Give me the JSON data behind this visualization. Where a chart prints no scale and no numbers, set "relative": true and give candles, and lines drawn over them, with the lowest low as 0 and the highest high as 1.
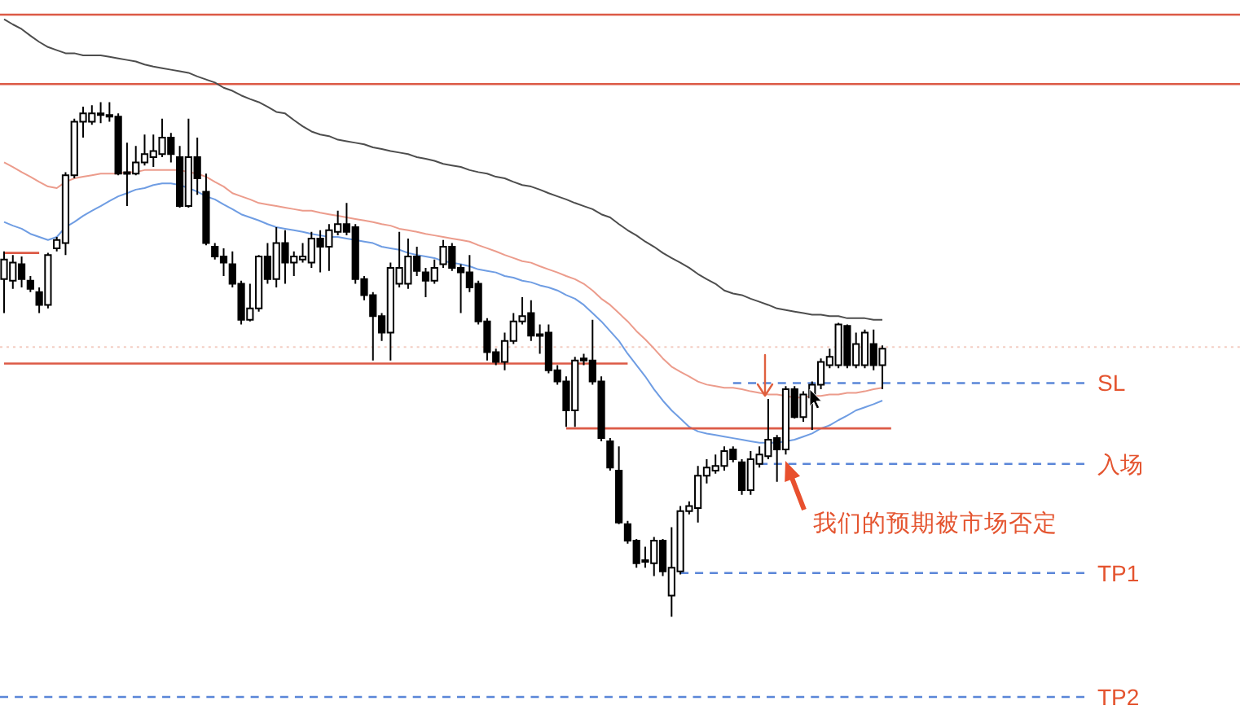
{
  "chart_data": {
    "type": "candlestick",
    "relative": true,
    "color": "#000000",
    "categories": [
      null,
      null,
      null,
      null,
      null,
      null,
      null,
      null,
      null,
      null,
      null,
      null,
      null,
      null,
      null,
      null,
      null,
      null,
      null,
      null,
      null,
      null,
      null,
      null,
      null,
      null,
      null,
      null,
      null,
      null,
      null,
      null,
      null,
      null,
      null,
      null,
      null,
      null,
      null,
      null,
      null,
      null,
      null,
      null,
      null,
      null,
      null,
      null,
      null,
      null,
      null,
      null,
      null,
      null,
      null,
      null,
      null,
      null,
      null,
      null,
      null,
      null,
      null,
      null,
      null,
      null,
      null,
      null,
      null,
      null,
      null,
      null,
      null,
      null,
      null,
      null,
      null,
      null,
      null,
      null,
      null,
      null,
      null,
      null,
      null,
      null,
      null,
      null,
      null,
      null,
      null,
      null,
      null,
      null,
      null,
      null,
      null,
      null,
      null,
      null,
      null,
      null,
      null,
      null,
      null,
      null,
      null,
      null,
      null,
      null,
      null,
      null,
      null,
      null,
      null,
      null,
      null,
      null,
      null,
      null,
      null,
      null,
      null,
      null
    ],
    "ohlc": [
      [
        0.656,
        0.71,
        0.59,
        0.694
      ],
      [
        0.653,
        0.703,
        0.637,
        0.688
      ],
      [
        0.685,
        0.7,
        0.64,
        0.656
      ],
      [
        0.653,
        0.662,
        0.631,
        0.637
      ],
      [
        0.631,
        0.64,
        0.59,
        0.606
      ],
      [
        0.606,
        0.707,
        0.599,
        0.703
      ],
      [
        0.716,
        0.738,
        0.71,
        0.732
      ],
      [
        0.726,
        0.864,
        0.703,
        0.858
      ],
      [
        0.858,
        0.968,
        0.852,
        0.962
      ],
      [
        0.962,
        0.991,
        0.931,
        0.978
      ],
      [
        0.962,
        0.994,
        0.956,
        0.978
      ],
      [
        0.978,
        1,
        0.959,
        0.975
      ],
      [
        0.975,
        1,
        0.962,
        0.972
      ],
      [
        0.972,
        0.978,
        0.858,
        0.861
      ],
      [
        0.861,
        0.921,
        0.798,
        0.864
      ],
      [
        0.861,
        0.915,
        0.858,
        0.883
      ],
      [
        0.883,
        0.937,
        0.877,
        0.899
      ],
      [
        0.893,
        0.937,
        0.874,
        0.905
      ],
      [
        0.899,
        0.968,
        0.893,
        0.931
      ],
      [
        0.931,
        0.94,
        0.883,
        0.899
      ],
      [
        0.893,
        0.915,
        0.795,
        0.798
      ],
      [
        0.798,
        0.968,
        0.795,
        0.893
      ],
      [
        0.893,
        0.931,
        0.82,
        0.852
      ],
      [
        0.826,
        0.861,
        0.722,
        0.726
      ],
      [
        0.719,
        0.726,
        0.694,
        0.7
      ],
      [
        0.7,
        0.716,
        0.662,
        0.688
      ],
      [
        0.685,
        0.71,
        0.64,
        0.647
      ],
      [
        0.647,
        0.653,
        0.568,
        0.577
      ],
      [
        0.577,
        0.647,
        0.574,
        0.599
      ],
      [
        0.599,
        0.703,
        0.593,
        0.7
      ],
      [
        0.7,
        0.726,
        0.647,
        0.656
      ],
      [
        0.656,
        0.757,
        0.64,
        0.726
      ],
      [
        0.726,
        0.751,
        0.647,
        0.688
      ],
      [
        0.688,
        0.71,
        0.662,
        0.7
      ],
      [
        0.694,
        0.726,
        0.688,
        0.7
      ],
      [
        0.688,
        0.748,
        0.678,
        0.735
      ],
      [
        0.735,
        0.751,
        0.669,
        0.719
      ],
      [
        0.719,
        0.763,
        0.672,
        0.751
      ],
      [
        0.748,
        0.789,
        0.741,
        0.763
      ],
      [
        0.763,
        0.804,
        0.741,
        0.748
      ],
      [
        0.757,
        0.763,
        0.647,
        0.656
      ],
      [
        0.656,
        0.662,
        0.615,
        0.625
      ],
      [
        0.625,
        0.631,
        0.498,
        0.584
      ],
      [
        0.584,
        0.59,
        0.536,
        0.552
      ],
      [
        0.552,
        0.688,
        0.498,
        0.678
      ],
      [
        0.647,
        0.748,
        0.64,
        0.678
      ],
      [
        0.647,
        0.735,
        0.637,
        0.7
      ],
      [
        0.7,
        0.719,
        0.662,
        0.672
      ],
      [
        0.669,
        0.678,
        0.621,
        0.653
      ],
      [
        0.653,
        0.694,
        0.647,
        0.678
      ],
      [
        0.685,
        0.732,
        0.678,
        0.719
      ],
      [
        0.719,
        0.726,
        0.672,
        0.678
      ],
      [
        0.678,
        0.685,
        0.59,
        0.669
      ],
      [
        0.669,
        0.703,
        0.631,
        0.64
      ],
      [
        0.647,
        0.653,
        0.568,
        0.574
      ],
      [
        0.574,
        0.58,
        0.498,
        0.514
      ],
      [
        0.514,
        0.521,
        0.489,
        0.495
      ],
      [
        0.495,
        0.552,
        0.479,
        0.536
      ],
      [
        0.536,
        0.59,
        0.53,
        0.574
      ],
      [
        0.574,
        0.621,
        0.568,
        0.584
      ],
      [
        0.59,
        0.615,
        0.536,
        0.546
      ],
      [
        0.549,
        0.568,
        0.511,
        0.546
      ],
      [
        0.552,
        0.568,
        0.473,
        0.479
      ],
      [
        0.479,
        0.489,
        0.451,
        0.457
      ],
      [
        0.457,
        0.467,
        0.369,
        0.401
      ],
      [
        0.401,
        0.505,
        0.369,
        0.498
      ],
      [
        0.502,
        0.511,
        0.489,
        0.498
      ],
      [
        0.498,
        0.577,
        0.451,
        0.457
      ],
      [
        0.457,
        0.467,
        0.341,
        0.347
      ],
      [
        0.341,
        0.347,
        0.284,
        0.29
      ],
      [
        0.284,
        0.331,
        0.18,
        0.183
      ],
      [
        0.18,
        0.186,
        0.142,
        0.148
      ],
      [
        0.148,
        0.151,
        0.095,
        0.104
      ],
      [
        0.107,
        0.136,
        0.095,
        0.11
      ],
      [
        0.104,
        0.155,
        0.079,
        0.148
      ],
      [
        0.148,
        0.151,
        0.079,
        0.088
      ],
      [
        0.041,
        0.174,
        0,
        0.095
      ],
      [
        0.088,
        0.215,
        0.082,
        0.205
      ],
      [
        0.205,
        0.224,
        0.199,
        0.215
      ],
      [
        0.211,
        0.293,
        0.183,
        0.274
      ],
      [
        0.274,
        0.306,
        0.259,
        0.29
      ],
      [
        0.284,
        0.315,
        0.278,
        0.293
      ],
      [
        0.293,
        0.331,
        0.284,
        0.322
      ],
      [
        0.325,
        0.331,
        0.3,
        0.306
      ],
      [
        0.3,
        0.306,
        0.237,
        0.246
      ],
      [
        0.246,
        0.322,
        0.237,
        0.306
      ],
      [
        0.297,
        0.331,
        0.29,
        0.315
      ],
      [
        0.312,
        0.423,
        0.306,
        0.344
      ],
      [
        0.347,
        0.353,
        0.262,
        0.325
      ],
      [
        0.325,
        0.448,
        0.315,
        0.442
      ],
      [
        0.442,
        0.448,
        0.385,
        0.388
      ],
      [
        0.388,
        0.438,
        0.379,
        0.432
      ],
      [
        0.426,
        0.457,
        0.363,
        0.451
      ],
      [
        0.451,
        0.502,
        0.442,
        0.495
      ],
      [
        0.489,
        0.521,
        0.483,
        0.505
      ],
      [
        0.489,
        0.571,
        0.483,
        0.568
      ],
      [
        0.565,
        0.568,
        0.483,
        0.489
      ],
      [
        0.489,
        0.552,
        0.483,
        0.53
      ],
      [
        0.489,
        0.558,
        0.483,
        0.552
      ],
      [
        0.53,
        0.558,
        0.479,
        0.489
      ],
      [
        0.489,
        0.527,
        0.442,
        0.521
      ],
      null,
      null,
      null,
      null,
      null,
      null,
      null,
      null,
      null,
      null,
      null,
      null,
      null,
      null,
      null,
      null,
      null,
      null,
      null,
      null,
      null,
      null,
      null
    ],
    "series": [
      {
        "type": "line",
        "color": "#4d4d4d",
        "values": [
          1.161,
          1.151,
          1.142,
          1.129,
          1.117,
          1.107,
          1.101,
          1.095,
          1.095,
          1.091,
          1.091,
          1.091,
          1.088,
          1.085,
          1.082,
          1.079,
          1.073,
          1.069,
          1.066,
          1.063,
          1.06,
          1.057,
          1.05,
          1.044,
          1.038,
          1.028,
          1.022,
          1.013,
          1.006,
          1.0,
          0.991,
          0.981,
          0.978,
          0.965,
          0.953,
          0.943,
          0.937,
          0.934,
          0.927,
          0.924,
          0.921,
          0.918,
          0.912,
          0.909,
          0.905,
          0.902,
          0.899,
          0.893,
          0.89,
          0.886,
          0.88,
          0.877,
          0.874,
          0.868,
          0.864,
          0.861,
          0.855,
          0.852,
          0.845,
          0.839,
          0.836,
          0.83,
          0.823,
          0.817,
          0.811,
          0.804,
          0.798,
          0.792,
          0.782,
          0.776,
          0.763,
          0.751,
          0.741,
          0.729,
          0.719,
          0.707,
          0.697,
          0.688,
          0.678,
          0.666,
          0.656,
          0.647,
          0.634,
          0.628,
          0.625,
          0.618,
          0.612,
          0.606,
          0.599,
          0.596,
          0.593,
          0.59,
          0.587,
          0.587,
          0.584,
          0.584,
          0.58,
          0.58,
          0.58,
          0.577,
          0.577,
          null,
          null,
          null,
          null,
          null,
          null,
          null,
          null,
          null,
          null,
          null,
          null,
          null,
          null,
          null,
          null,
          null,
          null,
          null,
          null,
          null,
          null,
          null
        ]
      },
      {
        "type": "line",
        "color": "#ec9c8c",
        "values": [
          0.883,
          0.874,
          0.864,
          0.855,
          0.845,
          0.836,
          0.833,
          0.845,
          0.852,
          0.855,
          0.858,
          0.861,
          0.861,
          0.861,
          0.864,
          0.864,
          0.868,
          0.868,
          0.868,
          0.868,
          0.868,
          0.864,
          0.861,
          0.855,
          0.845,
          0.836,
          0.823,
          0.817,
          0.811,
          0.804,
          0.801,
          0.798,
          0.795,
          0.792,
          0.789,
          0.789,
          0.785,
          0.782,
          0.779,
          0.776,
          0.773,
          0.77,
          0.767,
          0.763,
          0.76,
          0.754,
          0.751,
          0.748,
          0.744,
          0.741,
          0.738,
          0.735,
          0.732,
          0.729,
          0.722,
          0.716,
          0.71,
          0.703,
          0.697,
          0.691,
          0.688,
          0.681,
          0.675,
          0.669,
          0.662,
          0.656,
          0.647,
          0.634,
          0.618,
          0.606,
          0.59,
          0.574,
          0.555,
          0.539,
          0.521,
          0.502,
          0.486,
          0.476,
          0.467,
          0.457,
          0.451,
          0.448,
          0.445,
          0.445,
          0.442,
          0.438,
          0.435,
          0.432,
          0.432,
          0.429,
          0.426,
          0.426,
          0.429,
          0.429,
          0.432,
          0.432,
          0.435,
          0.435,
          0.438,
          0.442,
          0.445,
          null,
          null,
          null,
          null,
          null,
          null,
          null,
          null,
          null,
          null,
          null,
          null,
          null,
          null,
          null,
          null,
          null,
          null,
          null,
          null,
          null,
          null,
          null
        ]
      },
      {
        "type": "line",
        "color": "#6f9de3",
        "values": [
          0.767,
          0.76,
          0.754,
          0.744,
          0.738,
          0.732,
          0.738,
          0.757,
          0.767,
          0.779,
          0.789,
          0.798,
          0.808,
          0.817,
          0.823,
          0.83,
          0.833,
          0.839,
          0.842,
          0.842,
          0.839,
          0.833,
          0.826,
          0.817,
          0.811,
          0.801,
          0.792,
          0.782,
          0.776,
          0.77,
          0.763,
          0.757,
          0.754,
          0.751,
          0.748,
          0.744,
          0.741,
          0.738,
          0.738,
          0.735,
          0.732,
          0.729,
          0.726,
          0.719,
          0.716,
          0.713,
          0.707,
          0.703,
          0.7,
          0.697,
          0.691,
          0.688,
          0.685,
          0.681,
          0.675,
          0.672,
          0.669,
          0.662,
          0.659,
          0.653,
          0.65,
          0.644,
          0.64,
          0.634,
          0.625,
          0.618,
          0.606,
          0.59,
          0.574,
          0.555,
          0.536,
          0.511,
          0.489,
          0.467,
          0.442,
          0.42,
          0.401,
          0.385,
          0.369,
          0.36,
          0.356,
          0.353,
          0.35,
          0.347,
          0.344,
          0.341,
          0.338,
          0.338,
          0.338,
          0.341,
          0.344,
          0.35,
          0.356,
          0.366,
          0.372,
          0.382,
          0.391,
          0.401,
          0.407,
          0.413,
          0.42,
          null,
          null,
          null,
          null,
          null,
          null,
          null,
          null,
          null,
          null,
          null,
          null,
          null,
          null,
          null,
          null,
          null,
          null,
          null,
          null,
          null,
          null,
          null
        ]
      },
      {
        "type": "line",
        "color": "#dc5a46",
        "line_style": "solid",
        "values": [
          0.707,
          0.707,
          0.707,
          0.707,
          0.707,
          null,
          null,
          null,
          null,
          null,
          null,
          null,
          null,
          null,
          null,
          null,
          null,
          null,
          null,
          null,
          null,
          null,
          null,
          null,
          null,
          null,
          null,
          null,
          null,
          null,
          null,
          null,
          null,
          null,
          null,
          null,
          null,
          null,
          null,
          null,
          null,
          null,
          null,
          null,
          null,
          null,
          null,
          null,
          null,
          null,
          null,
          null,
          null,
          null,
          null,
          null,
          null,
          null,
          null,
          null,
          null,
          null,
          null,
          null,
          null,
          null,
          null,
          null,
          null,
          null,
          null,
          null,
          null,
          null,
          null,
          null,
          null,
          null,
          null,
          null,
          null,
          null,
          null,
          null,
          null,
          null,
          null,
          null,
          null,
          null,
          null,
          null,
          null,
          null,
          null,
          null,
          null,
          null,
          null,
          null,
          null,
          null,
          null,
          null,
          null,
          null,
          null,
          null,
          null,
          null,
          null,
          null,
          null,
          null,
          null,
          null,
          null,
          null,
          null,
          null,
          null,
          null,
          null,
          null
        ]
      },
      {
        "type": "line",
        "color": "#dc5a46",
        "line_style": "solid",
        "values": [
          0.492,
          0.492,
          0.492,
          0.492,
          0.492,
          0.492,
          0.492,
          0.492,
          0.492,
          0.492,
          0.492,
          0.492,
          0.492,
          0.492,
          0.492,
          0.492,
          0.492,
          0.492,
          0.492,
          0.492,
          0.492,
          0.492,
          0.492,
          0.492,
          0.492,
          0.492,
          0.492,
          0.492,
          0.492,
          0.492,
          0.492,
          0.492,
          0.492,
          0.492,
          0.492,
          0.492,
          0.492,
          0.492,
          0.492,
          0.492,
          0.492,
          0.492,
          0.492,
          0.492,
          0.492,
          0.492,
          0.492,
          0.492,
          0.492,
          0.492,
          0.492,
          0.492,
          0.492,
          0.492,
          0.492,
          0.492,
          0.492,
          0.492,
          0.492,
          0.492,
          0.492,
          0.492,
          0.492,
          0.492,
          0.492,
          0.492,
          0.492,
          0.492,
          0.492,
          0.492,
          0.492,
          0.492,
          null,
          null,
          null,
          null,
          null,
          null,
          null,
          null,
          null,
          null,
          null,
          null,
          null,
          null,
          null,
          null,
          null,
          null,
          null,
          null,
          null,
          null,
          null,
          null,
          null,
          null,
          null,
          null,
          null,
          null,
          null,
          null,
          null,
          null,
          null,
          null,
          null,
          null,
          null,
          null,
          null,
          null,
          null,
          null,
          null,
          null,
          null,
          null,
          null,
          null,
          null,
          null
        ]
      },
      {
        "type": "line",
        "color": "#dc5a46",
        "line_style": "solid",
        "values": [
          null,
          null,
          null,
          null,
          null,
          null,
          null,
          null,
          null,
          null,
          null,
          null,
          null,
          null,
          null,
          null,
          null,
          null,
          null,
          null,
          null,
          null,
          null,
          null,
          null,
          null,
          null,
          null,
          null,
          null,
          null,
          null,
          null,
          null,
          null,
          null,
          null,
          null,
          null,
          null,
          null,
          null,
          null,
          null,
          null,
          null,
          null,
          null,
          null,
          null,
          null,
          null,
          null,
          null,
          null,
          null,
          null,
          null,
          null,
          null,
          null,
          null,
          null,
          null,
          0.366,
          0.366,
          0.366,
          0.366,
          0.366,
          0.366,
          0.366,
          0.366,
          0.366,
          0.366,
          0.366,
          0.366,
          0.366,
          0.366,
          0.366,
          0.366,
          0.366,
          0.366,
          0.366,
          0.366,
          0.366,
          0.366,
          0.366,
          0.366,
          0.366,
          0.366,
          0.366,
          0.366,
          0.366,
          0.366,
          0.366,
          0.366,
          0.366,
          0.366,
          0.366,
          0.366,
          0.366,
          0.366,
          null,
          null,
          null,
          null,
          null,
          null,
          null,
          null,
          null,
          null,
          null,
          null,
          null,
          null,
          null,
          null,
          null,
          null,
          null,
          null,
          null,
          null
        ]
      },
      {
        "type": "line",
        "name": "SL",
        "color": "#5a86d8",
        "line_style": "dashed",
        "values": [
          null,
          null,
          null,
          null,
          null,
          null,
          null,
          null,
          null,
          null,
          null,
          null,
          null,
          null,
          null,
          null,
          null,
          null,
          null,
          null,
          null,
          null,
          null,
          null,
          null,
          null,
          null,
          null,
          null,
          null,
          null,
          null,
          null,
          null,
          null,
          null,
          null,
          null,
          null,
          null,
          null,
          null,
          null,
          null,
          null,
          null,
          null,
          null,
          null,
          null,
          null,
          null,
          null,
          null,
          null,
          null,
          null,
          null,
          null,
          null,
          null,
          null,
          null,
          null,
          null,
          null,
          null,
          null,
          null,
          null,
          null,
          null,
          null,
          null,
          null,
          null,
          null,
          null,
          null,
          null,
          null,
          null,
          null,
          0.454,
          0.454,
          0.454,
          0.454,
          0.454,
          0.454,
          0.454,
          0.454,
          0.454,
          0.454,
          0.454,
          0.454,
          0.454,
          0.454,
          0.454,
          0.454,
          0.454,
          0.454,
          0.454,
          0.454,
          0.454,
          0.454,
          0.454,
          0.454,
          0.454,
          0.454,
          0.454,
          0.454,
          0.454,
          0.454,
          0.454,
          0.454,
          0.454,
          0.454,
          0.454,
          0.454,
          0.454,
          0.454,
          0.454,
          0.454,
          0.454
        ]
      },
      {
        "type": "line",
        "name": "入场",
        "color": "#5a86d8",
        "line_style": "dashed",
        "values": [
          null,
          null,
          null,
          null,
          null,
          null,
          null,
          null,
          null,
          null,
          null,
          null,
          null,
          null,
          null,
          null,
          null,
          null,
          null,
          null,
          null,
          null,
          null,
          null,
          null,
          null,
          null,
          null,
          null,
          null,
          null,
          null,
          null,
          null,
          null,
          null,
          null,
          null,
          null,
          null,
          null,
          null,
          null,
          null,
          null,
          null,
          null,
          null,
          null,
          null,
          null,
          null,
          null,
          null,
          null,
          null,
          null,
          null,
          null,
          null,
          null,
          null,
          null,
          null,
          null,
          null,
          null,
          null,
          null,
          null,
          null,
          null,
          null,
          null,
          null,
          null,
          null,
          null,
          null,
          null,
          null,
          null,
          null,
          null,
          null,
          null,
          0.297,
          0.297,
          0.297,
          0.297,
          0.297,
          0.297,
          0.297,
          0.297,
          0.297,
          0.297,
          0.297,
          0.297,
          0.297,
          0.297,
          0.297,
          0.297,
          0.297,
          0.297,
          0.297,
          0.297,
          0.297,
          0.297,
          0.297,
          0.297,
          0.297,
          0.297,
          0.297,
          0.297,
          0.297,
          0.297,
          0.297,
          0.297,
          0.297,
          0.297,
          0.297,
          0.297,
          0.297,
          0.297
        ]
      },
      {
        "type": "line",
        "name": "TP1",
        "color": "#5a86d8",
        "line_style": "dashed",
        "values": [
          null,
          null,
          null,
          null,
          null,
          null,
          null,
          null,
          null,
          null,
          null,
          null,
          null,
          null,
          null,
          null,
          null,
          null,
          null,
          null,
          null,
          null,
          null,
          null,
          null,
          null,
          null,
          null,
          null,
          null,
          null,
          null,
          null,
          null,
          null,
          null,
          null,
          null,
          null,
          null,
          null,
          null,
          null,
          null,
          null,
          null,
          null,
          null,
          null,
          null,
          null,
          null,
          null,
          null,
          null,
          null,
          null,
          null,
          null,
          null,
          null,
          null,
          null,
          null,
          null,
          null,
          null,
          null,
          null,
          null,
          null,
          null,
          null,
          null,
          null,
          null,
          null,
          0.085,
          0.085,
          0.085,
          0.085,
          0.085,
          0.085,
          0.085,
          0.085,
          0.085,
          0.085,
          0.085,
          0.085,
          0.085,
          0.085,
          0.085,
          0.085,
          0.085,
          0.085,
          0.085,
          0.085,
          0.085,
          0.085,
          0.085,
          0.085,
          0.085,
          0.085,
          0.085,
          0.085,
          0.085,
          0.085,
          0.085,
          0.085,
          0.085,
          0.085,
          0.085,
          0.085,
          0.085,
          0.085,
          0.085,
          0.085,
          0.085,
          0.085,
          0.085,
          0.085,
          0.085,
          0.085,
          0.085
        ]
      }
    ],
    "ref_lines": [
      {
        "axis": "y",
        "value": 0.524,
        "color": "#f3cdc2",
        "line_style": "dotted"
      },
      {
        "axis": "y",
        "value": 1.17,
        "color": "#dc5a46",
        "line_style": "solid"
      },
      {
        "axis": "y",
        "value": 1.035,
        "color": "#dc5a46",
        "line_style": "solid"
      },
      {
        "axis": "y",
        "value": -0.156,
        "label": "TP2",
        "color": "#5a86d8",
        "line_style": "dashed"
      }
    ],
    "annotations": [
      "我们的预期被市场否定"
    ]
  }
}
